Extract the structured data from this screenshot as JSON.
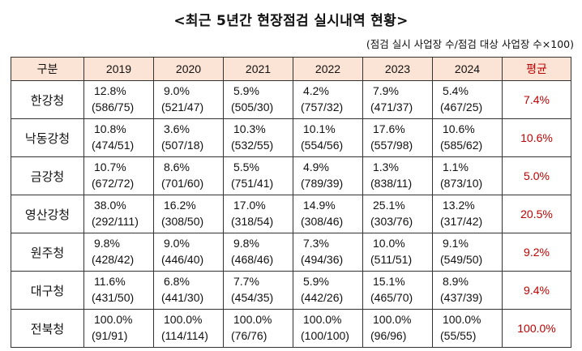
{
  "title": "<최근 5년간 현장점검 실시내역 현황>",
  "subtitle": "(점검 실시 사업장 수/점검 대상 사업장 수×100)",
  "table": {
    "headers": {
      "category": "구분",
      "years": [
        "2019",
        "2020",
        "2021",
        "2022",
        "2023",
        "2024"
      ],
      "average": "평균"
    },
    "rows": [
      {
        "region": "한강청",
        "cells": [
          {
            "pct": "12.8%",
            "count": "(586/75)"
          },
          {
            "pct": "9.0%",
            "count": "(521/47)"
          },
          {
            "pct": "5.9%",
            "count": "(505/30)"
          },
          {
            "pct": "4.2%",
            "count": "(757/32)"
          },
          {
            "pct": "7.9%",
            "count": "(471/37)"
          },
          {
            "pct": "5.4%",
            "count": "(467/25)"
          }
        ],
        "average": "7.4%"
      },
      {
        "region": "낙동강청",
        "cells": [
          {
            "pct": "10.8%",
            "count": "(474/51)"
          },
          {
            "pct": "3.6%",
            "count": "(507/18)"
          },
          {
            "pct": "10.3%",
            "count": "(532/55)"
          },
          {
            "pct": "10.1%",
            "count": "(554/56)"
          },
          {
            "pct": "17.6%",
            "count": "(557/98)"
          },
          {
            "pct": "10.6%",
            "count": "(585/62)"
          }
        ],
        "average": "10.6%"
      },
      {
        "region": "금강청",
        "cells": [
          {
            "pct": "10.7%",
            "count": "(672/72)"
          },
          {
            "pct": "8.6%",
            "count": "(701/60)"
          },
          {
            "pct": "5.5%",
            "count": "(751/41)"
          },
          {
            "pct": "4.9%",
            "count": "(789/39)"
          },
          {
            "pct": "1.3%",
            "count": "(838/11)"
          },
          {
            "pct": "1.1%",
            "count": "(873/10)"
          }
        ],
        "average": "5.0%"
      },
      {
        "region": "영산강청",
        "cells": [
          {
            "pct": "38.0%",
            "count": "(292/111)"
          },
          {
            "pct": "16.2%",
            "count": "(308/50)"
          },
          {
            "pct": "17.0%",
            "count": "(318/54)"
          },
          {
            "pct": "14.9%",
            "count": "(308/46)"
          },
          {
            "pct": "25.1%",
            "count": "(303/76)"
          },
          {
            "pct": "13.2%",
            "count": "(317/42)"
          }
        ],
        "average": "20.5%"
      },
      {
        "region": "원주청",
        "cells": [
          {
            "pct": "9.8%",
            "count": "(428/42)"
          },
          {
            "pct": "9.0%",
            "count": "(446/40)"
          },
          {
            "pct": "9.8%",
            "count": "(468/46)"
          },
          {
            "pct": "7.3%",
            "count": "(494/36)"
          },
          {
            "pct": "10.0%",
            "count": "(511/51)"
          },
          {
            "pct": "9.1%",
            "count": "(549/50)"
          }
        ],
        "average": "9.2%"
      },
      {
        "region": "대구청",
        "cells": [
          {
            "pct": "11.6%",
            "count": "(431/50)"
          },
          {
            "pct": "6.8%",
            "count": "(441/30)"
          },
          {
            "pct": "7.7%",
            "count": "(454/35)"
          },
          {
            "pct": "5.9%",
            "count": "(442/26)"
          },
          {
            "pct": "15.1%",
            "count": "(465/70)"
          },
          {
            "pct": "8.9%",
            "count": "(437/39)"
          }
        ],
        "average": "9.4%"
      },
      {
        "region": "전북청",
        "cells": [
          {
            "pct": "100.0%",
            "count": "(91/91)"
          },
          {
            "pct": "100.0%",
            "count": "(114/114)"
          },
          {
            "pct": "100.0%",
            "count": "(76/76)"
          },
          {
            "pct": "100.0%",
            "count": "(100/100)"
          },
          {
            "pct": "100.0%",
            "count": "(96/96)"
          },
          {
            "pct": "100.0%",
            "count": "(55/55)"
          }
        ],
        "average": "100.0%"
      }
    ]
  },
  "colors": {
    "header_bg": "#fbe4d5",
    "average_text": "#c00000",
    "border": "#333333"
  }
}
